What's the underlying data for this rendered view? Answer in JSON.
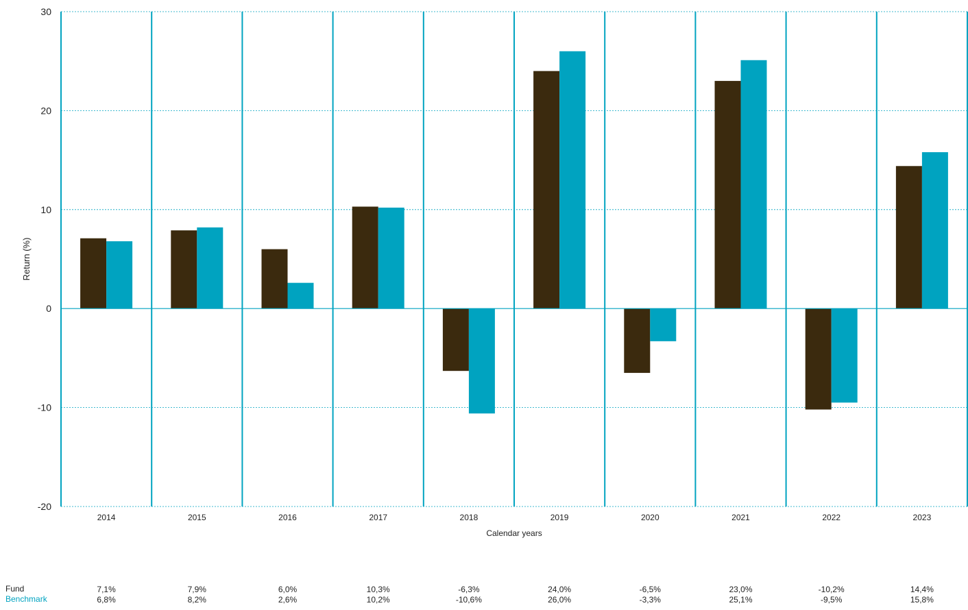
{
  "chart_data": {
    "type": "bar",
    "ylabel": "Return (%)",
    "xlabel": "Calendar years",
    "ylim": [
      -20,
      30
    ],
    "yticks": [
      -20,
      -10,
      0,
      10,
      20,
      30
    ],
    "categories": [
      "2014",
      "2015",
      "2016",
      "2017",
      "2018",
      "2019",
      "2020",
      "2021",
      "2022",
      "2023"
    ],
    "series": [
      {
        "name": "Fund",
        "color": "#3b2a0e",
        "values": [
          7.1,
          7.9,
          6.0,
          10.3,
          -6.3,
          24.0,
          -6.5,
          23.0,
          -10.2,
          14.4
        ],
        "labels": [
          "7,1%",
          "7,9%",
          "6,0%",
          "10,3%",
          "-6,3%",
          "24,0%",
          "-6,5%",
          "23,0%",
          "-10,2%",
          "14,4%"
        ]
      },
      {
        "name": "Benchmark",
        "color": "#00a3c0",
        "values": [
          6.8,
          8.2,
          2.6,
          10.2,
          -10.6,
          26.0,
          -3.3,
          25.1,
          -9.5,
          15.8
        ],
        "labels": [
          "6,8%",
          "8,2%",
          "2,6%",
          "10,2%",
          "-10,6%",
          "26,0%",
          "-3,3%",
          "25,1%",
          "-9,5%",
          "15,8%"
        ]
      }
    ],
    "grid": true,
    "legend": "bottom-left table"
  }
}
